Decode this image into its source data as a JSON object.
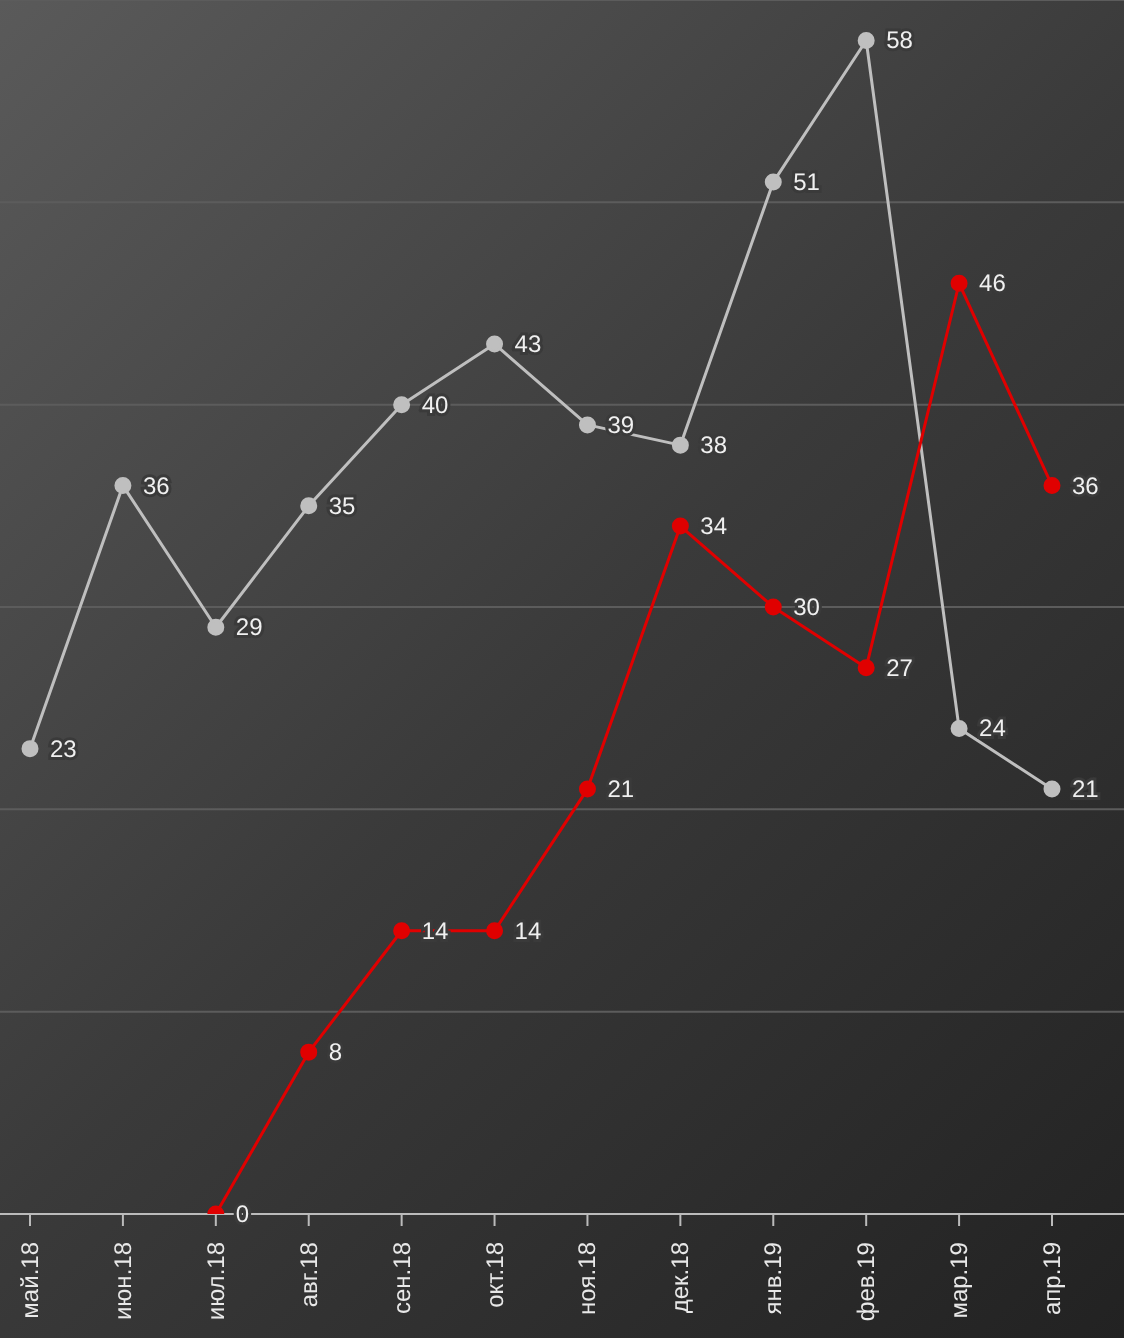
{
  "chart_data": {
    "type": "line",
    "categories": [
      "май.18",
      "июн.18",
      "июл.18",
      "авг.18",
      "сен.18",
      "окт.18",
      "ноя.18",
      "дек.18",
      "янв.19",
      "фев.19",
      "мар.19",
      "апр.19"
    ],
    "series": [
      {
        "color": "#bfbfbf",
        "values": [
          23,
          36,
          29,
          35,
          40,
          43,
          39,
          38,
          51,
          58,
          24,
          21
        ]
      },
      {
        "color": "#e00000",
        "values": [
          null,
          null,
          0,
          8,
          14,
          14,
          21,
          34,
          30,
          27,
          46,
          36
        ]
      }
    ],
    "ylim": [
      0,
      60
    ],
    "yticks": [
      {
        "value": 0,
        "label": null
      },
      {
        "value": 10,
        "label": null
      },
      {
        "value": 20,
        "label": null
      },
      {
        "value": 30,
        "label": null
      },
      {
        "value": 40,
        "label": null
      },
      {
        "value": 50,
        "label": null
      },
      {
        "value": 60,
        "label": null
      }
    ],
    "tick_labels": "x",
    "grid": "y",
    "data_labels": true,
    "marker": "circle",
    "line_style": "solid",
    "legend": false
  }
}
